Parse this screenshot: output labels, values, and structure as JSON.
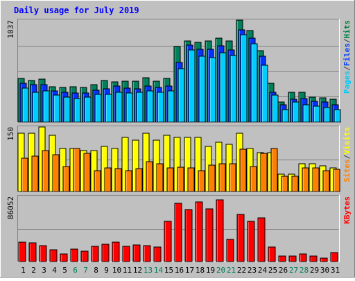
{
  "chart_data": {
    "type": "bar",
    "title": "Daily usage for July 2019",
    "categories": [
      "1",
      "2",
      "3",
      "4",
      "5",
      "6",
      "7",
      "8",
      "9",
      "10",
      "11",
      "12",
      "13",
      "14",
      "15",
      "16",
      "17",
      "18",
      "19",
      "20",
      "21",
      "22",
      "23",
      "24",
      "25",
      "26",
      "27",
      "28",
      "29",
      "30",
      "31"
    ],
    "weekend_days": [
      "6",
      "7",
      "13",
      "14",
      "20",
      "21",
      "27",
      "28"
    ],
    "panels": [
      {
        "name": "hits-files-pages",
        "ymax_label": "1037",
        "ymax": 1037,
        "legend": [
          {
            "label": "Pages",
            "color": "#00C8F8"
          },
          {
            "label": "/",
            "color": "#404040"
          },
          {
            "label": "Files",
            "color": "#0040FF"
          },
          {
            "label": "/",
            "color": "#404040"
          },
          {
            "label": "Hits",
            "color": "#008040"
          }
        ],
        "series": [
          {
            "name": "Hits",
            "color": "#00805C",
            "values": [
              445,
              423,
              440,
              359,
              354,
              359,
              354,
              380,
              423,
              407,
              413,
              418,
              451,
              418,
              445,
              769,
              826,
              812,
              826,
              856,
              828,
              1037,
              928,
              727,
              397,
              205,
              300,
              300,
              256,
              246,
              230
            ]
          },
          {
            "name": "Files",
            "color": "#0033FF",
            "values": [
              396,
              380,
              380,
              316,
              304,
              294,
              299,
              326,
              342,
              364,
              347,
              342,
              364,
              354,
              364,
              608,
              780,
              740,
              740,
              777,
              735,
              940,
              854,
              667,
              305,
              177,
              235,
              238,
              213,
              206,
              177
            ]
          },
          {
            "name": "Pages",
            "color": "#00CCFF",
            "values": [
              348,
              305,
              320,
              278,
              251,
              241,
              251,
              283,
              283,
              302,
              294,
              305,
              316,
              305,
              316,
              543,
              731,
              671,
              657,
              708,
              676,
              886,
              797,
              580,
              278,
              128,
              204,
              177,
              159,
              150,
              128
            ]
          }
        ]
      },
      {
        "name": "visits-sites",
        "ymax_label": "150",
        "ymax": 150,
        "legend": [
          {
            "label": "Sites",
            "color": "#FF8000"
          },
          {
            "label": "/",
            "color": "#404040"
          },
          {
            "label": "Visits",
            "color": "#FFFF00"
          }
        ],
        "series": [
          {
            "name": "Visits",
            "color": "#FFFF00",
            "values": [
              135,
              135,
              150,
              130,
              100,
              100,
              95,
              95,
              105,
              100,
              125,
              120,
              135,
              120,
              130,
              125,
              125,
              125,
              105,
              115,
              110,
              135,
              100,
              90,
              90,
              40,
              40,
              65,
              65,
              60,
              55
            ]
          },
          {
            "name": "Sites",
            "color": "#FF8000",
            "values": [
              78,
              83,
              95,
              85,
              58,
              100,
              88,
              48,
              55,
              53,
              48,
              53,
              70,
              65,
              55,
              57,
              55,
              48,
              62,
              65,
              65,
              98,
              58,
              88,
              100,
              35,
              35,
              55,
              55,
              48,
              52
            ]
          }
        ]
      },
      {
        "name": "kbytes",
        "ymax_label": "86052",
        "ymax": 86052,
        "legend": [
          {
            "label": "KBytes",
            "color": "#FF0000"
          }
        ],
        "series": [
          {
            "name": "KBytes",
            "color": "#FF0000",
            "values": [
              26000,
              24500,
              21500,
              15500,
              10000,
              16500,
              13500,
              20000,
              23000,
              26000,
              20000,
              22000,
              21500,
              19500,
              53000,
              77000,
              69000,
              79000,
              70000,
              81800,
              29000,
              62000,
              53500,
              57500,
              19500,
              7000,
              7000,
              10000,
              7000,
              5000,
              11500
            ]
          }
        ]
      }
    ],
    "colors": {
      "background": "#C0C0C0",
      "plot_bg": "#C0C0C0",
      "title": "#0000FF",
      "weekday_label": "#000000",
      "weekend_label": "#00805C"
    }
  }
}
